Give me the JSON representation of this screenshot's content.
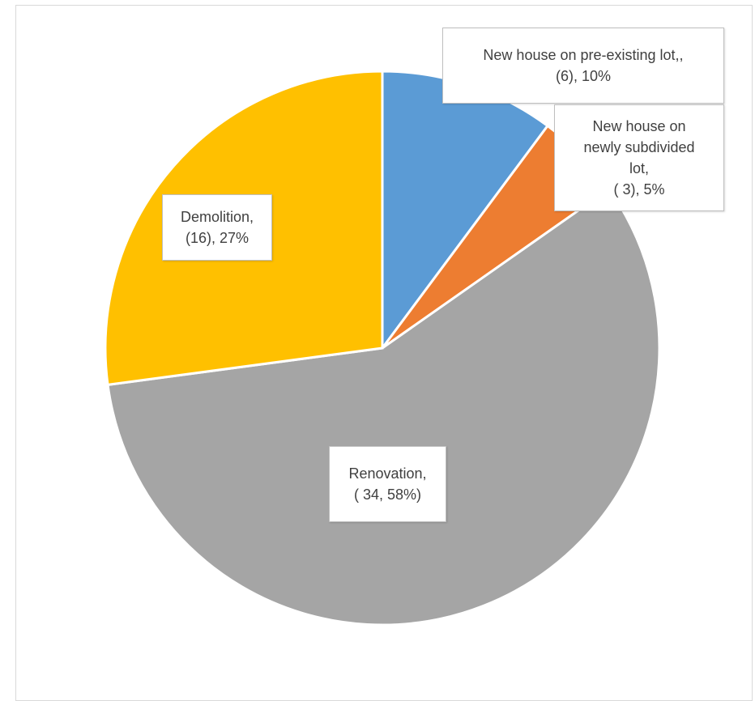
{
  "chart_data": {
    "type": "pie",
    "start_angle_deg": 0,
    "direction": "clockwise",
    "slices": [
      {
        "category": "New house on pre-existing lot,",
        "value": 6,
        "percent": "10%",
        "color": "#5b9bd5",
        "label_lines": [
          "New house on pre-existing lot,,",
          "(6), 10%"
        ]
      },
      {
        "category": "New house on newly subdivided lot",
        "value": 3,
        "percent": "5%",
        "color": "#ed7d31",
        "label_lines": [
          "New house on",
          "newly subdivided",
          "lot,",
          "( 3), 5%"
        ]
      },
      {
        "category": "Renovation",
        "value": 34,
        "percent": "58%",
        "color": "#a5a5a5",
        "label_lines": [
          "Renovation,",
          "( 34, 58%)"
        ]
      },
      {
        "category": "Demolition",
        "value": 16,
        "percent": "27%",
        "color": "#ffc000",
        "label_lines": [
          "Demolition,",
          "(16), 27%"
        ]
      }
    ]
  }
}
